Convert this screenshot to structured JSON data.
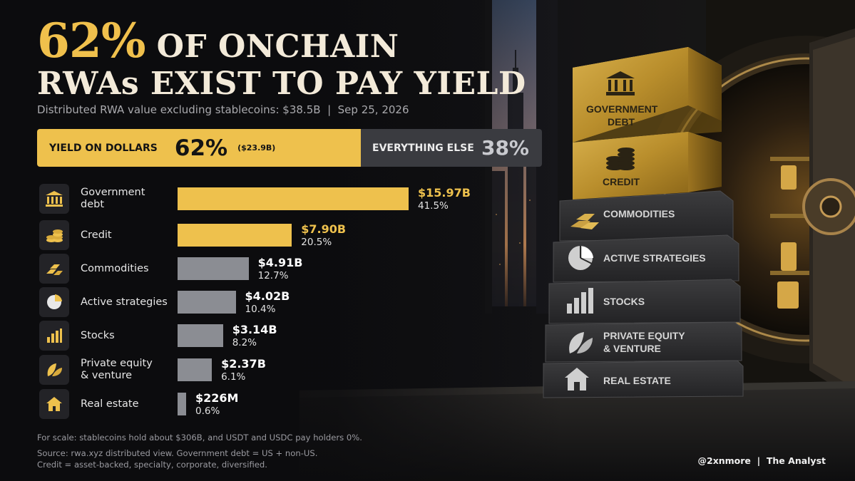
{
  "headline": {
    "pct": "62%",
    "line1_rest": "OF ONCHAIN",
    "line2": "RWAs EXIST TO PAY YIELD"
  },
  "subtitle": "Distributed RWA value excluding stablecoins: $38.5B  |  Sep 25, 2026",
  "split": {
    "yield_label": "YIELD ON DOLLARS",
    "yield_pct": "62%",
    "yield_amount": "($23.9B)",
    "yield_value": 62,
    "else_label": "EVERYTHING ELSE",
    "else_pct": "38%",
    "else_value": 38
  },
  "chart_data": {
    "type": "bar",
    "orientation": "horizontal",
    "categories": [
      "Government debt",
      "Credit",
      "Commodities",
      "Active strategies",
      "Stocks",
      "Private equity & venture",
      "Real estate"
    ],
    "values": [
      15.97,
      7.9,
      4.91,
      4.02,
      3.14,
      2.37,
      0.226
    ],
    "unit": "$B",
    "value_labels": [
      "$15.97B",
      "$7.90B",
      "$4.91B",
      "$4.02B",
      "$3.14B",
      "$2.37B",
      "$226M"
    ],
    "share_labels": [
      "41.5%",
      "20.5%",
      "12.7%",
      "10.4%",
      "8.2%",
      "6.1%",
      "0.6%"
    ],
    "shares": [
      41.5,
      20.5,
      12.7,
      10.4,
      8.2,
      6.1,
      0.6
    ],
    "highlighted": [
      true,
      true,
      false,
      false,
      false,
      false,
      false
    ],
    "label_lines": [
      [
        "Government",
        "debt"
      ],
      [
        "Credit"
      ],
      [
        "Commodities"
      ],
      [
        "Active strategies"
      ],
      [
        "Stocks"
      ],
      [
        "Private equity",
        "& venture"
      ],
      [
        "Real estate"
      ]
    ],
    "icons": [
      "bank-icon",
      "coins-icon",
      "gold-bars-icon",
      "pie-chart-icon",
      "bar-chart-icon",
      "leaf-icon",
      "house-icon"
    ]
  },
  "colors": {
    "accent": "#eec14d",
    "bar_muted": "#8b8d93",
    "else_bg": "#3a3b40",
    "background": "#0c0c0e"
  },
  "stack_blocks": [
    {
      "lines": [
        "GOVERNMENT",
        "DEBT"
      ],
      "icon": "bank-icon",
      "style": "gold"
    },
    {
      "lines": [
        "CREDIT"
      ],
      "icon": "coins-icon",
      "style": "gold"
    },
    {
      "lines": [
        "COMMODITIES"
      ],
      "icon": "gold-bars-icon",
      "style": "stone"
    },
    {
      "lines": [
        "ACTIVE STRATEGIES"
      ],
      "icon": "pie-chart-icon",
      "style": "stone"
    },
    {
      "lines": [
        "STOCKS"
      ],
      "icon": "bar-chart-icon",
      "style": "stone"
    },
    {
      "lines": [
        "PRIVATE EQUITY",
        "& VENTURE"
      ],
      "icon": "leaf-icon",
      "style": "stone"
    },
    {
      "lines": [
        "REAL ESTATE"
      ],
      "icon": "house-icon",
      "style": "stone"
    }
  ],
  "notes": {
    "scale": "For scale: stablecoins hold about $306B, and USDT and USDC pay holders 0%.",
    "source": "Source: rwa.xyz distributed view. Government debt = US + non-US.",
    "credit_def": "Credit = asset-backed, specialty, corporate, diversified."
  },
  "footer_credit": "@2xnmore  |  The Analyst"
}
